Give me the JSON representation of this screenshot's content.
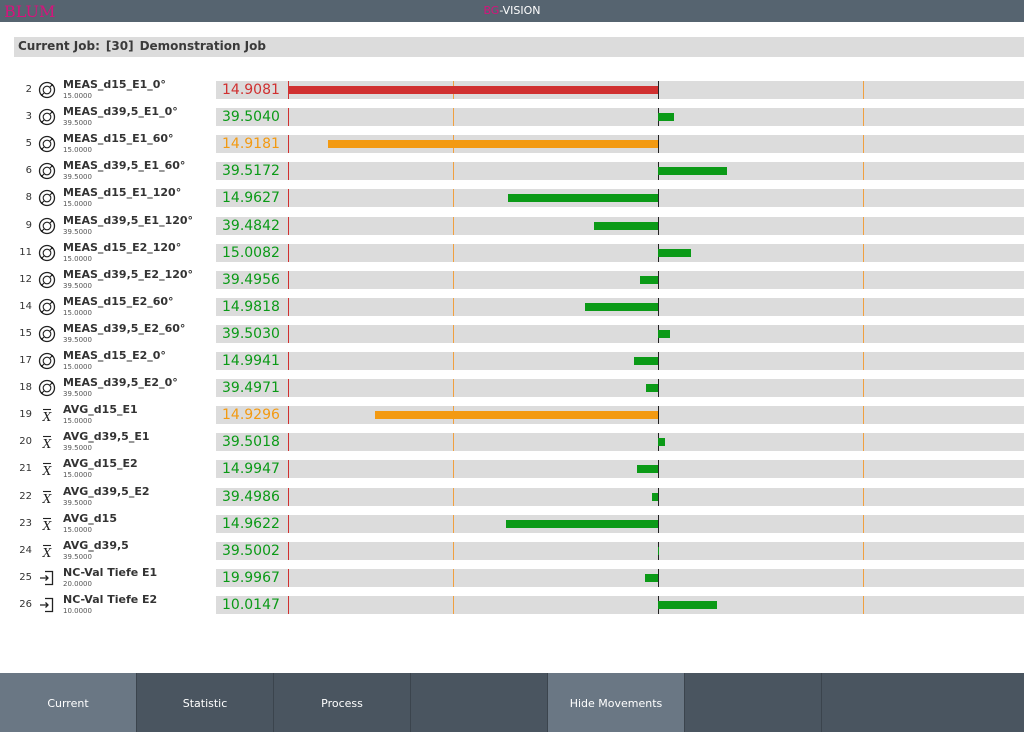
{
  "app": {
    "logo": "BLUM",
    "title_prefix": "BG",
    "title_suffix": "-VISION"
  },
  "job": {
    "label": "Current Job:",
    "id": "[30]",
    "name": "Demonstration Job"
  },
  "colors": {
    "red": "#d03030",
    "orange": "#f39a12",
    "green": "#0b9a17"
  },
  "rows": [
    {
      "num": "2",
      "icon": "roundness-icon",
      "name": "MEAS_d15_E1_0°",
      "nominal": "15.0000",
      "value": "14.9081",
      "color": "red",
      "dev": -0.0919
    },
    {
      "num": "3",
      "icon": "roundness-icon",
      "name": "MEAS_d39,5_E1_0°",
      "nominal": "39.5000",
      "value": "39.5040",
      "color": "green",
      "dev": 0.004
    },
    {
      "num": "5",
      "icon": "roundness-icon",
      "name": "MEAS_d15_E1_60°",
      "nominal": "15.0000",
      "value": "14.9181",
      "color": "orange",
      "dev": -0.0819
    },
    {
      "num": "6",
      "icon": "roundness-icon",
      "name": "MEAS_d39,5_E1_60°",
      "nominal": "39.5000",
      "value": "39.5172",
      "color": "green",
      "dev": 0.0172
    },
    {
      "num": "8",
      "icon": "roundness-icon",
      "name": "MEAS_d15_E1_120°",
      "nominal": "15.0000",
      "value": "14.9627",
      "color": "green",
      "dev": -0.0373
    },
    {
      "num": "9",
      "icon": "roundness-icon",
      "name": "MEAS_d39,5_E1_120°",
      "nominal": "39.5000",
      "value": "39.4842",
      "color": "green",
      "dev": -0.0158
    },
    {
      "num": "11",
      "icon": "roundness-icon",
      "name": "MEAS_d15_E2_120°",
      "nominal": "15.0000",
      "value": "15.0082",
      "color": "green",
      "dev": 0.0082
    },
    {
      "num": "12",
      "icon": "roundness-icon",
      "name": "MEAS_d39,5_E2_120°",
      "nominal": "39.5000",
      "value": "39.4956",
      "color": "green",
      "dev": -0.0044
    },
    {
      "num": "14",
      "icon": "roundness-icon",
      "name": "MEAS_d15_E2_60°",
      "nominal": "15.0000",
      "value": "14.9818",
      "color": "green",
      "dev": -0.0182
    },
    {
      "num": "15",
      "icon": "roundness-icon",
      "name": "MEAS_d39,5_E2_60°",
      "nominal": "39.5000",
      "value": "39.5030",
      "color": "green",
      "dev": 0.003
    },
    {
      "num": "17",
      "icon": "roundness-icon",
      "name": "MEAS_d15_E2_0°",
      "nominal": "15.0000",
      "value": "14.9941",
      "color": "green",
      "dev": -0.0059
    },
    {
      "num": "18",
      "icon": "roundness-icon",
      "name": "MEAS_d39,5_E2_0°",
      "nominal": "39.5000",
      "value": "39.4971",
      "color": "green",
      "dev": -0.0029
    },
    {
      "num": "19",
      "icon": "average-icon",
      "name": "AVG_d15_E1",
      "nominal": "15.0000",
      "value": "14.9296",
      "color": "orange",
      "dev": -0.0704
    },
    {
      "num": "20",
      "icon": "average-icon",
      "name": "AVG_d39,5_E1",
      "nominal": "39.5000",
      "value": "39.5018",
      "color": "green",
      "dev": 0.0018
    },
    {
      "num": "21",
      "icon": "average-icon",
      "name": "AVG_d15_E2",
      "nominal": "15.0000",
      "value": "14.9947",
      "color": "green",
      "dev": -0.0053
    },
    {
      "num": "22",
      "icon": "average-icon",
      "name": "AVG_d39,5_E2",
      "nominal": "39.5000",
      "value": "39.4986",
      "color": "green",
      "dev": -0.0014
    },
    {
      "num": "23",
      "icon": "average-icon",
      "name": "AVG_d15",
      "nominal": "15.0000",
      "value": "14.9622",
      "color": "green",
      "dev": -0.0378
    },
    {
      "num": "24",
      "icon": "average-icon",
      "name": "AVG_d39,5",
      "nominal": "39.5000",
      "value": "39.5002",
      "color": "green",
      "dev": 0.0002
    },
    {
      "num": "25",
      "icon": "input-icon",
      "name": "NC-Val Tiefe E1",
      "nominal": "20.0000",
      "value": "19.9967",
      "color": "green",
      "dev": -0.0033
    },
    {
      "num": "26",
      "icon": "input-icon",
      "name": "NC-Val Tiefe E2",
      "nominal": "10.0000",
      "value": "10.0147",
      "color": "green",
      "dev": 0.0147
    }
  ],
  "footer": {
    "buttons": [
      {
        "label": "Current",
        "active": true
      },
      {
        "label": "Statistic",
        "active": false
      },
      {
        "label": "Process",
        "active": false
      },
      {
        "label": "",
        "active": false
      },
      {
        "label": "Hide Movements",
        "active": true
      },
      {
        "label": "",
        "active": false
      },
      {
        "label": "",
        "active": false
      }
    ]
  }
}
